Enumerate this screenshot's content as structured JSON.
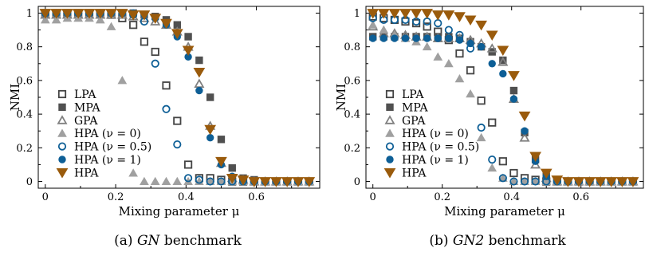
{
  "captions": [
    {
      "label": "(a)",
      "name": "GN",
      "suffix": "benchmark"
    },
    {
      "label": "(b)",
      "name": "GN2",
      "suffix": "benchmark"
    }
  ],
  "series_styles": [
    {
      "name": "LPA",
      "marker": "square-open",
      "color": "#444444"
    },
    {
      "name": "MPA",
      "marker": "square-filled",
      "color": "#505050"
    },
    {
      "name": "GPA",
      "marker": "triangle-open",
      "color": "#808080"
    },
    {
      "name": "HPA (ν = 0)",
      "marker": "triangle-filled",
      "color": "#a0a0a0"
    },
    {
      "name": "HPA (ν = 0.5)",
      "marker": "circle-open",
      "color": "#0e5f96"
    },
    {
      "name": "HPA (ν = 1)",
      "marker": "circle-filled",
      "color": "#0e5f96"
    },
    {
      "name": "HPA",
      "marker": "triangle-down-filled",
      "color": "#9a5b0c"
    }
  ],
  "chart_data": [
    {
      "type": "scatter",
      "xlabel": "Mixing parameter μ",
      "ylabel": "NMI",
      "xlim": [
        -0.02,
        0.78
      ],
      "ylim": [
        -0.04,
        1.04
      ],
      "xticks": [
        0,
        0.2,
        0.4,
        0.6
      ],
      "xtick_labels": [
        "0",
        "0.2",
        "0.4",
        "0.6"
      ],
      "yticks": [
        0,
        0.2,
        0.4,
        0.6,
        0.8,
        1
      ],
      "ytick_labels": [
        "0",
        "0.2",
        "0.4",
        "0.6",
        "0.8",
        "1"
      ],
      "legend_position": "lower-left",
      "x": [
        0,
        0.03125,
        0.0625,
        0.09375,
        0.125,
        0.15625,
        0.1875,
        0.21875,
        0.25,
        0.28125,
        0.3125,
        0.34375,
        0.375,
        0.40625,
        0.4375,
        0.46875,
        0.5,
        0.53125,
        0.5625,
        0.59375,
        0.625,
        0.65625,
        0.6875,
        0.71875,
        0.75
      ],
      "series": [
        {
          "name": "LPA",
          "values": [
            1,
            1,
            1,
            1,
            1,
            1,
            0.99,
            0.97,
            0.93,
            0.83,
            0.77,
            0.57,
            0.36,
            0.1,
            0.02,
            0.02,
            0.01,
            0,
            0,
            0,
            0,
            0,
            0,
            0,
            0
          ]
        },
        {
          "name": "MPA",
          "values": [
            1,
            1,
            1,
            1,
            1,
            1,
            1,
            1,
            1,
            0.99,
            0.98,
            0.96,
            0.93,
            0.86,
            0.72,
            0.5,
            0.25,
            0.08,
            0.02,
            0.01,
            0,
            0,
            0,
            0,
            0
          ]
        },
        {
          "name": "GPA",
          "values": [
            0.99,
            0.99,
            0.99,
            0.99,
            0.99,
            0.99,
            0.99,
            0.99,
            0.98,
            0.97,
            0.95,
            0.93,
            0.89,
            0.8,
            0.58,
            0.33,
            0.11,
            0.02,
            0.01,
            0,
            0,
            0,
            0,
            0,
            0
          ]
        },
        {
          "name": "HPA (ν = 0)",
          "values": [
            0.96,
            0.96,
            0.97,
            0.97,
            0.97,
            0.96,
            0.92,
            0.6,
            0.05,
            0,
            0,
            0,
            0,
            0,
            0,
            0,
            0,
            0,
            0,
            0,
            0,
            0,
            0,
            0,
            0
          ]
        },
        {
          "name": "HPA (ν = 0.5)",
          "values": [
            1,
            1,
            1,
            1,
            1,
            1,
            1,
            1,
            0.99,
            0.95,
            0.7,
            0.43,
            0.22,
            0.02,
            0.01,
            0,
            0,
            0,
            0,
            0,
            0,
            0,
            0,
            0,
            0
          ]
        },
        {
          "name": "HPA (ν = 1)",
          "values": [
            1,
            1,
            1,
            1,
            1,
            1,
            1,
            1,
            1,
            0.99,
            0.97,
            0.93,
            0.86,
            0.74,
            0.54,
            0.26,
            0.1,
            0.03,
            0.01,
            0,
            0,
            0,
            0,
            0,
            0
          ]
        },
        {
          "name": "HPA",
          "values": [
            1,
            1,
            1,
            1,
            1,
            1,
            1,
            1,
            0.99,
            0.99,
            0.97,
            0.94,
            0.88,
            0.78,
            0.65,
            0.31,
            0.12,
            0.02,
            0.01,
            0,
            0,
            0,
            0,
            0,
            0
          ]
        }
      ]
    },
    {
      "type": "scatter",
      "xlabel": "Mixing parameter μ",
      "ylabel": "NMI",
      "xlim": [
        -0.02,
        0.78
      ],
      "ylim": [
        -0.04,
        1.04
      ],
      "xticks": [
        0,
        0.2,
        0.4,
        0.6
      ],
      "xtick_labels": [
        "0",
        "0.2",
        "0.4",
        "0.6"
      ],
      "yticks": [
        0,
        0.2,
        0.4,
        0.6,
        0.8,
        1
      ],
      "ytick_labels": [
        "0",
        "0.2",
        "0.4",
        "0.6",
        "0.8",
        "1"
      ],
      "legend_position": "lower-left",
      "x": [
        0,
        0.03125,
        0.0625,
        0.09375,
        0.125,
        0.15625,
        0.1875,
        0.21875,
        0.25,
        0.28125,
        0.3125,
        0.34375,
        0.375,
        0.40625,
        0.4375,
        0.46875,
        0.5,
        0.53125,
        0.5625,
        0.59375,
        0.625,
        0.65625,
        0.6875,
        0.71875,
        0.75
      ],
      "series": [
        {
          "name": "LPA",
          "values": [
            0.98,
            0.97,
            0.96,
            0.95,
            0.94,
            0.92,
            0.89,
            0.84,
            0.76,
            0.66,
            0.48,
            0.35,
            0.12,
            0.05,
            0.02,
            0.01,
            0,
            0,
            0,
            0,
            0,
            0,
            0,
            0,
            0
          ]
        },
        {
          "name": "MPA",
          "values": [
            0.86,
            0.86,
            0.86,
            0.86,
            0.86,
            0.86,
            0.86,
            0.86,
            0.85,
            0.83,
            0.8,
            0.77,
            0.72,
            0.54,
            0.29,
            0.13,
            0.03,
            0.01,
            0,
            0,
            0,
            0,
            0,
            0,
            0
          ]
        },
        {
          "name": "GPA",
          "values": [
            0.92,
            0.88,
            0.88,
            0.87,
            0.86,
            0.86,
            0.85,
            0.85,
            0.85,
            0.84,
            0.82,
            0.79,
            0.71,
            0.49,
            0.26,
            0.1,
            0.02,
            0,
            0,
            0,
            0,
            0,
            0,
            0,
            0
          ]
        },
        {
          "name": "HPA (ν = 0)",
          "values": [
            0.93,
            0.9,
            0.87,
            0.85,
            0.83,
            0.8,
            0.74,
            0.7,
            0.61,
            0.52,
            0.26,
            0.08,
            0.02,
            0,
            0,
            0,
            0,
            0,
            0,
            0,
            0,
            0,
            0,
            0,
            0
          ]
        },
        {
          "name": "HPA (ν = 0.5)",
          "values": [
            0.97,
            0.96,
            0.96,
            0.96,
            0.95,
            0.95,
            0.94,
            0.9,
            0.87,
            0.79,
            0.32,
            0.13,
            0.02,
            0,
            0,
            0,
            0,
            0,
            0,
            0,
            0,
            0,
            0,
            0,
            0
          ]
        },
        {
          "name": "HPA (ν = 1)",
          "values": [
            0.85,
            0.85,
            0.85,
            0.85,
            0.85,
            0.85,
            0.85,
            0.85,
            0.84,
            0.82,
            0.8,
            0.7,
            0.64,
            0.49,
            0.3,
            0.12,
            0.03,
            0.01,
            0,
            0,
            0,
            0,
            0,
            0,
            0
          ]
        },
        {
          "name": "HPA",
          "values": [
            1,
            1,
            1,
            1,
            1,
            1,
            0.99,
            0.99,
            0.98,
            0.96,
            0.93,
            0.87,
            0.78,
            0.63,
            0.39,
            0.15,
            0.05,
            0.01,
            0,
            0,
            0,
            0,
            0,
            0,
            0
          ]
        }
      ]
    }
  ]
}
